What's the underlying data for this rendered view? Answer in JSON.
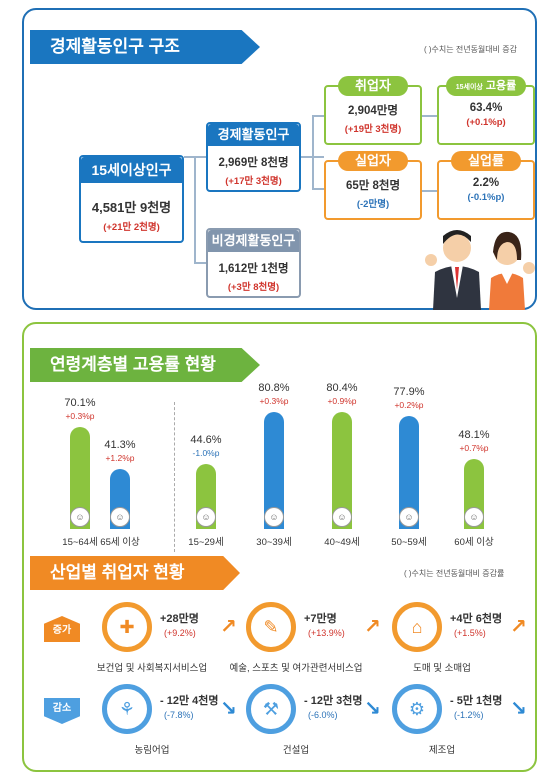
{
  "structure": {
    "title": "경제활동인구 구조",
    "note": "( )수치는 전년동월대비 증감",
    "pop15": {
      "label": "15세이상인구",
      "value": "4,581만 9천명",
      "change": "(+21만 2천명)"
    },
    "active": {
      "label": "경제활동인구",
      "value": "2,969만 8천명",
      "change": "(+17만 3천명)"
    },
    "inactive": {
      "label": "비경제활동인구",
      "value": "1,612만 1천명",
      "change": "(+3만 8천명)"
    },
    "employed": {
      "label": "취업자",
      "value": "2,904만명",
      "change": "(+19만 3천명)"
    },
    "emp_rate": {
      "label_small": "15세이상",
      "label": "고용률",
      "value": "63.4%",
      "change": "(+0.1%p)"
    },
    "unemployed": {
      "label": "실업자",
      "value": "65만 8천명",
      "change": "(-2만명)"
    },
    "unemp_rate": {
      "label": "실업률",
      "value": "2.2%",
      "change": "(-0.1%p)"
    }
  },
  "age": {
    "title": "연령계층별 고용률 현황",
    "bars": [
      {
        "label": "15~64세",
        "value": "70.1%",
        "change": "+0.3%p",
        "color": "#8cc43f"
      },
      {
        "label": "65세 이상",
        "value": "41.3%",
        "change": "+1.2%p",
        "color": "#2e8ad4"
      },
      {
        "label": "15~29세",
        "value": "44.6%",
        "change": "-1.0%p",
        "color": "#8cc43f"
      },
      {
        "label": "30~39세",
        "value": "80.8%",
        "change": "+0.3%p",
        "color": "#2e8ad4"
      },
      {
        "label": "40~49세",
        "value": "80.4%",
        "change": "+0.9%p",
        "color": "#8cc43f"
      },
      {
        "label": "50~59세",
        "value": "77.9%",
        "change": "+0.2%p",
        "color": "#2e8ad4"
      },
      {
        "label": "60세 이상",
        "value": "48.1%",
        "change": "+0.7%p",
        "color": "#8cc43f"
      }
    ]
  },
  "industry": {
    "title": "산업별 취업자 현황",
    "note": "( )수치는 전년동월대비 증감률",
    "increase_tag": "증가",
    "decrease_tag": "감소",
    "increase": [
      {
        "name": "보건업 및 사회복지서비스업",
        "value": "+28만명",
        "pct": "(+9.2%)",
        "icon": "medical-kit-icon"
      },
      {
        "name": "예술, 스포츠 및 여가관련서비스업",
        "value": "+7만명",
        "pct": "(+13.9%)",
        "icon": "art-palette-icon"
      },
      {
        "name": "도매 및 소매업",
        "value": "+4만 6천명",
        "pct": "(+1.5%)",
        "icon": "shopping-basket-icon"
      }
    ],
    "decrease": [
      {
        "name": "농림어업",
        "value": "- 12만 4천명",
        "pct": "(-7.8%)",
        "icon": "wheat-icon"
      },
      {
        "name": "건설업",
        "value": "- 12만 3천명",
        "pct": "(-6.0%)",
        "icon": "excavator-icon"
      },
      {
        "name": "제조업",
        "value": "- 5만 1천명",
        "pct": "(-1.2%)",
        "icon": "gears-icon"
      }
    ]
  }
}
